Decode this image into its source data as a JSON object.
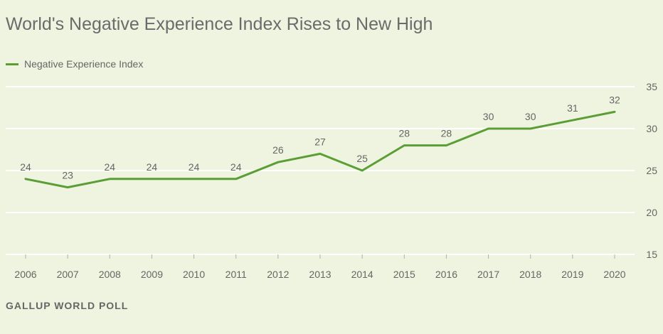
{
  "title": "World's Negative Experience Index Rises to New High",
  "source": "GALLUP WORLD POLL",
  "colors": {
    "line": "#5b9e35",
    "grid": "#ffffff",
    "background": "#eef4df"
  },
  "chart_data": {
    "type": "line",
    "title": "World's Negative Experience Index Rises to New High",
    "x": [
      "2006",
      "2007",
      "2008",
      "2009",
      "2010",
      "2011",
      "2012",
      "2013",
      "2014",
      "2015",
      "2016",
      "2017",
      "2018",
      "2019",
      "2020"
    ],
    "series": [
      {
        "name": "Negative Experience Index",
        "values": [
          24,
          23,
          24,
          24,
          24,
          24,
          26,
          27,
          25,
          28,
          28,
          30,
          30,
          31,
          32
        ]
      }
    ],
    "ylim": [
      15,
      35
    ],
    "yticks": [
      15,
      20,
      25,
      30,
      35
    ],
    "y_axis_side": "right",
    "grid": true,
    "legend": "top-left",
    "data_labels": true
  }
}
